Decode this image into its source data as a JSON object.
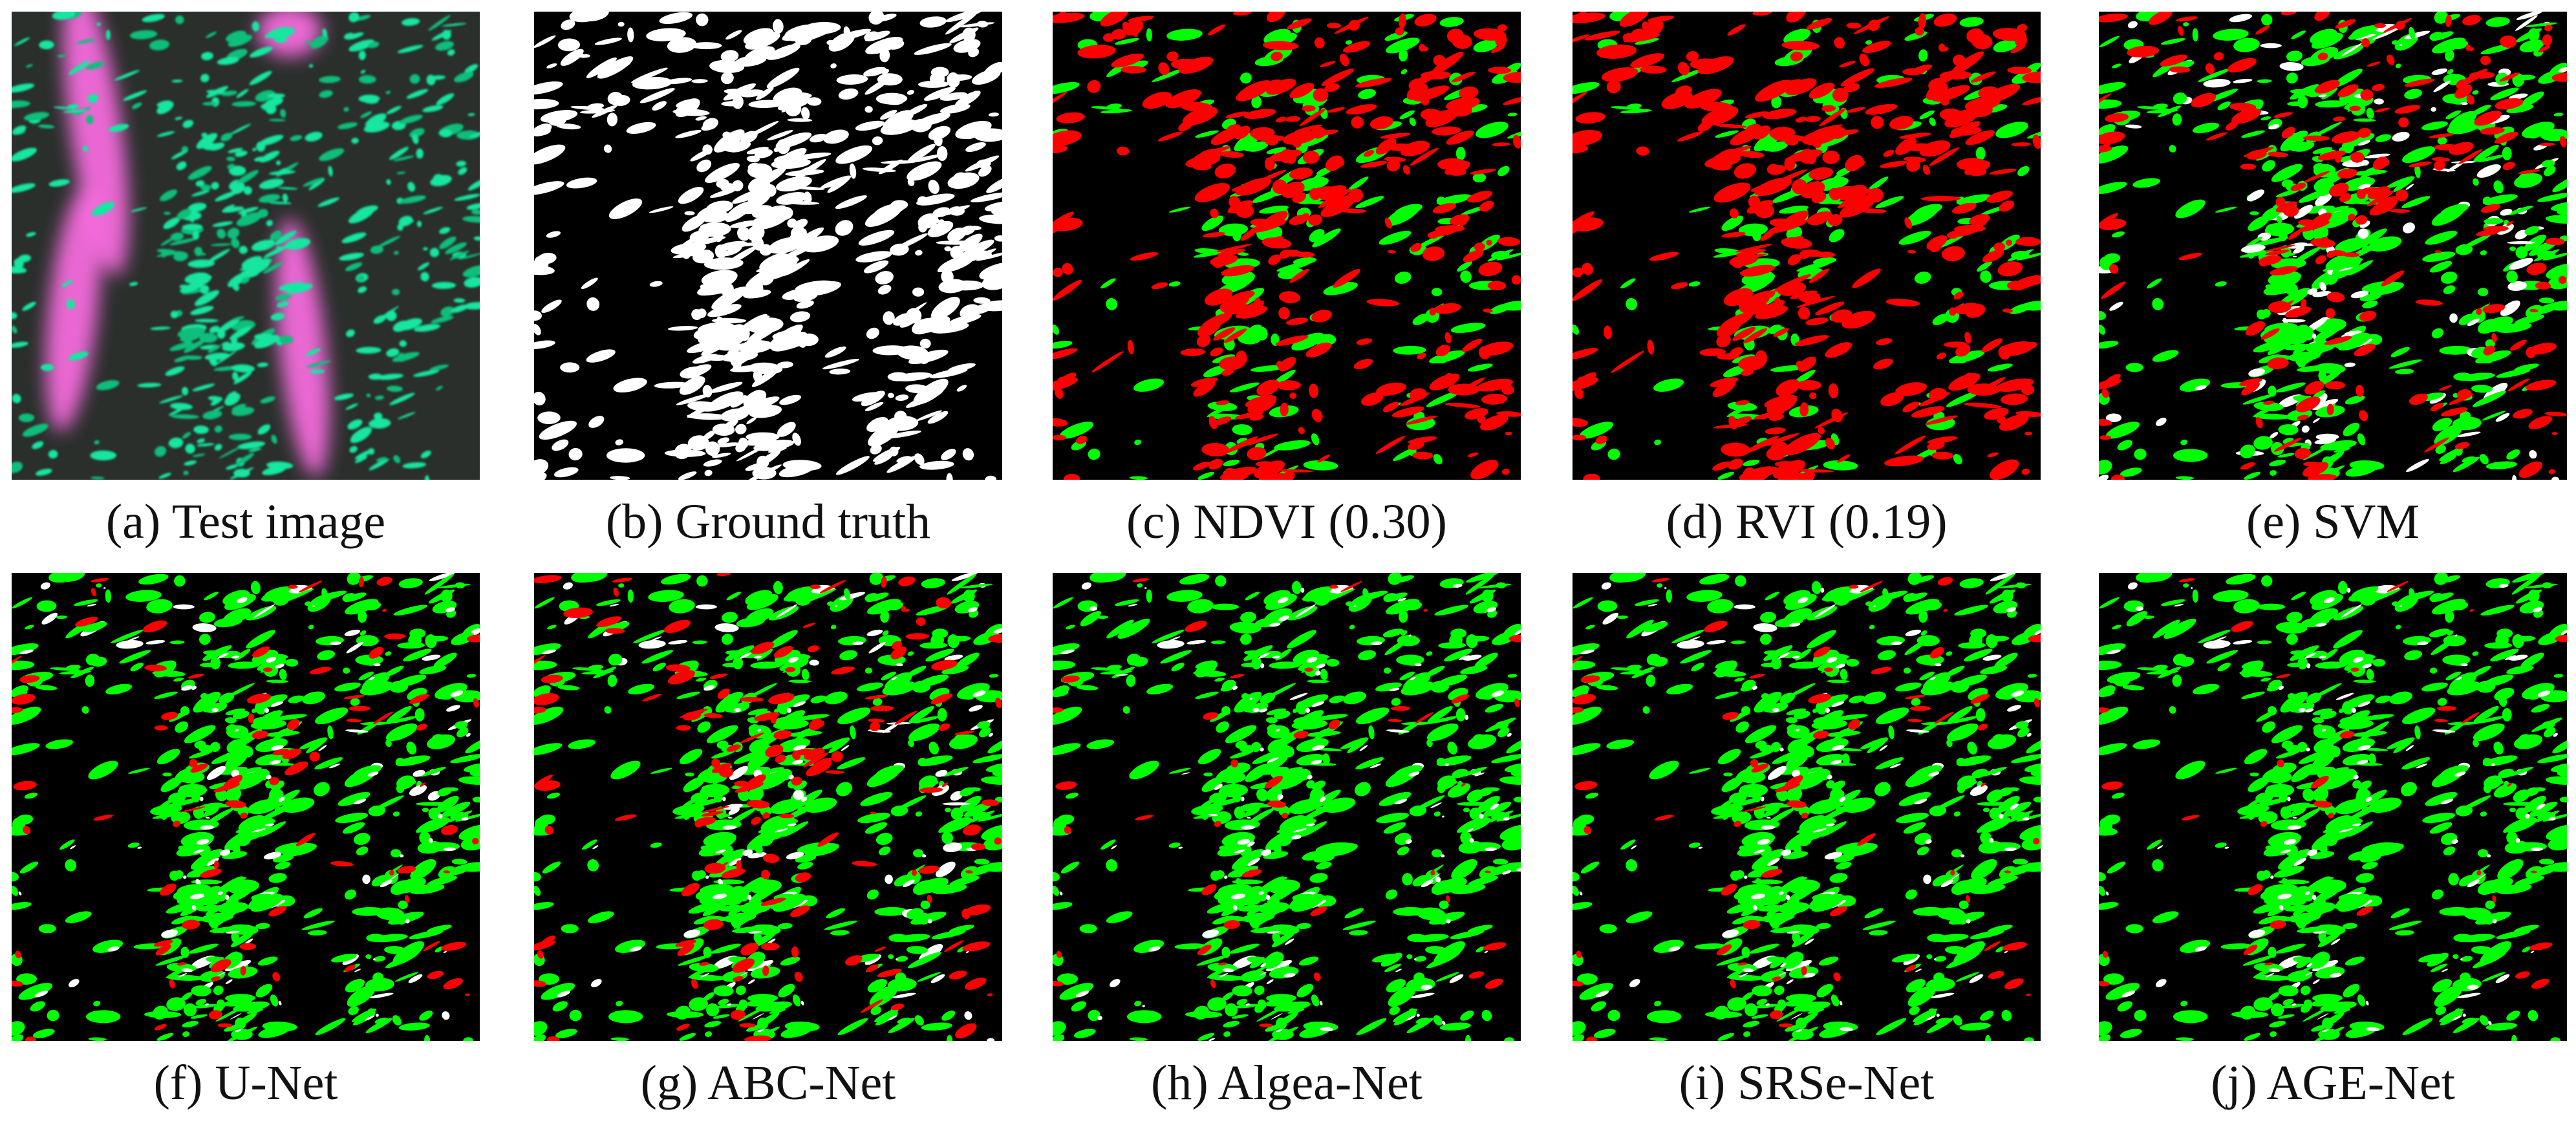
{
  "figure": {
    "background": "#ffffff",
    "colors": {
      "background_pixel": "#000000",
      "true_positive": "#00ff00",
      "false_positive": "#ff0000",
      "false_negative": "#ffffff",
      "test_image_algae": "#19e6a0",
      "test_image_cloud": "#ff6ee6",
      "test_image_water": "#2a2f2c"
    },
    "panels": [
      {
        "id": "a",
        "caption": "(a) Test image",
        "kind": "test-image"
      },
      {
        "id": "b",
        "caption": "(b) Ground truth",
        "kind": "ground-truth"
      },
      {
        "id": "c",
        "caption": "(c) NDVI (0.30)",
        "kind": "result",
        "green": 0.35,
        "red": 0.9,
        "white": 0.0
      },
      {
        "id": "d",
        "caption": "(d) RVI (0.19)",
        "kind": "result",
        "green": 0.3,
        "red": 1.0,
        "white": 0.0
      },
      {
        "id": "e",
        "caption": "(e) SVM",
        "kind": "result",
        "green": 0.75,
        "red": 0.55,
        "white": 0.02
      },
      {
        "id": "f",
        "caption": "(f) U-Net",
        "kind": "result",
        "green": 0.9,
        "red": 0.25,
        "white": 0.12
      },
      {
        "id": "g",
        "caption": "(g) ABC-Net",
        "kind": "result",
        "green": 0.85,
        "red": 0.4,
        "white": 0.08
      },
      {
        "id": "h",
        "caption": "(h) Algea-Net",
        "kind": "result",
        "green": 0.95,
        "red": 0.12,
        "white": 0.2
      },
      {
        "id": "i",
        "caption": "(i) SRSe-Net",
        "kind": "result",
        "green": 0.92,
        "red": 0.2,
        "white": 0.14
      },
      {
        "id": "j",
        "caption": "(j) AGE-Net",
        "kind": "result",
        "green": 0.95,
        "red": 0.1,
        "white": 0.16
      }
    ]
  }
}
